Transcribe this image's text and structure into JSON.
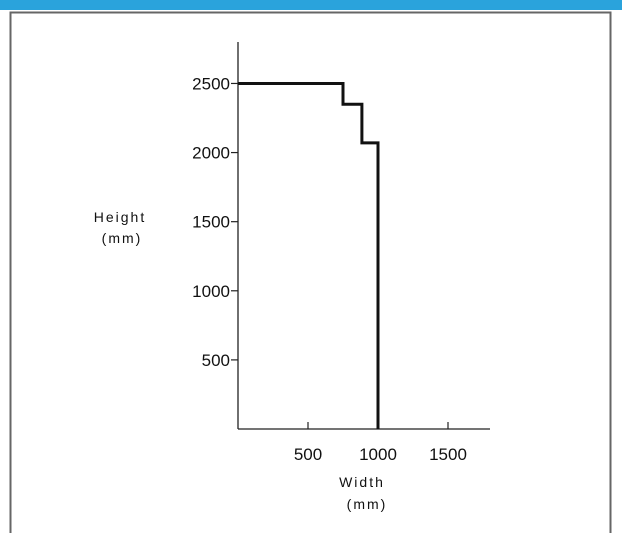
{
  "colors": {
    "header_band": "#2aa3dc",
    "frame_border": "#666666",
    "axis": "#222222",
    "series_line": "#111111"
  },
  "chart_data": {
    "type": "line",
    "title": "",
    "xlabel": "Width",
    "xlabel_unit": "(mm)",
    "ylabel": "Height",
    "ylabel_unit": "(mm)",
    "xlim": [
      0,
      1800
    ],
    "ylim": [
      0,
      2800
    ],
    "x_ticks": [
      500,
      1000,
      1500
    ],
    "y_ticks": [
      500,
      1000,
      1500,
      2000,
      2500
    ],
    "x_tick_labels": [
      "500",
      "1000",
      "1500"
    ],
    "y_tick_labels": [
      "500",
      "1000",
      "1500",
      "2000",
      "2500"
    ],
    "grid": false,
    "legend": "none",
    "series": [
      {
        "x": [
          0,
          750,
          750,
          885,
          885,
          1000,
          1000
        ],
        "y": [
          2500,
          2500,
          2350,
          2350,
          2070,
          2070,
          0
        ]
      }
    ]
  }
}
